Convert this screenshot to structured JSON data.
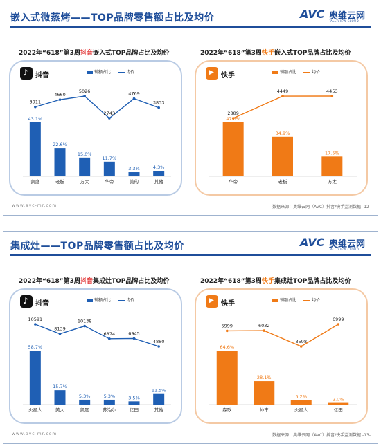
{
  "slides": [
    {
      "title": "嵌入式微蒸烤——TOP品牌零售额占比及均价",
      "logo": {
        "main": "AVC",
        "cn": "奥维云网",
        "sub": "ALL VIEW CLOUD"
      },
      "footer_left": "www.avc-mr.com",
      "footer_right": "数据来源：奥维云网（AVC）抖音/快手监测数据",
      "page": "-12-",
      "left_subtitle": {
        "pre": "2022年“618”第3周",
        "hl": "抖音",
        "post": "嵌入式TOP品牌占比及均价"
      },
      "right_subtitle": {
        "pre": "2022年“618”第3周",
        "hl": "快手",
        "post": "嵌入式TOP品牌占比及均价"
      }
    },
    {
      "title": "集成灶——TOP品牌零售额占比及均价",
      "logo": {
        "main": "AVC",
        "cn": "奥维云网",
        "sub": "ALL VIEW CLOUD"
      },
      "footer_left": "www.avc-mr.com",
      "footer_right": "数据来源：奥维云网（AVC）抖音/快手监测数据",
      "page": "-13-",
      "left_subtitle": {
        "pre": "2022年“618”第3周",
        "hl": "抖音",
        "post": "集成灶TOP品牌占比及均价"
      },
      "right_subtitle": {
        "pre": "2022年“618”第3周",
        "hl": "快手",
        "post": "集成灶TOP品牌占比及均价"
      }
    }
  ],
  "apps": {
    "douyin": "抖音",
    "kuaishou": "快手"
  },
  "legend": {
    "bar": "销额占比",
    "line": "均价"
  },
  "colors": {
    "douyin": "#1f5fb4",
    "kuaishou": "#f07a16"
  },
  "chart_data": [
    {
      "type": "bar+line",
      "categories": [
        "凯度",
        "老板",
        "方太",
        "华帝",
        "美的",
        "其他"
      ],
      "series": [
        {
          "name": "销额占比",
          "type": "bar",
          "values": [
            43.1,
            22.6,
            15.0,
            11.7,
            3.3,
            4.3
          ],
          "labels": [
            "43.1%",
            "22.6%",
            "15.0%",
            "11.7%",
            "3.3%",
            "4.3%"
          ]
        },
        {
          "name": "均价",
          "type": "line",
          "values": [
            3911,
            4660,
            5026,
            2743,
            4769,
            3833
          ]
        }
      ]
    },
    {
      "type": "bar+line",
      "categories": [
        "华帝",
        "老板",
        "方太"
      ],
      "series": [
        {
          "name": "销额占比",
          "type": "bar",
          "values": [
            47.6,
            34.9,
            17.5
          ],
          "labels": [
            "47.6%",
            "34.9%",
            "17.5%"
          ]
        },
        {
          "name": "均价",
          "type": "line",
          "values": [
            2889,
            4449,
            4453
          ]
        }
      ]
    },
    {
      "type": "bar+line",
      "categories": [
        "火星人",
        "美大",
        "凯度",
        "苏泊尔",
        "亿田",
        "其他"
      ],
      "series": [
        {
          "name": "销额占比",
          "type": "bar",
          "values": [
            58.7,
            15.7,
            5.3,
            5.3,
            3.5,
            11.5
          ],
          "labels": [
            "58.7%",
            "15.7%",
            "5.3%",
            "5.3%",
            "3.5%",
            "11.5%"
          ]
        },
        {
          "name": "均价",
          "type": "line",
          "values": [
            10591,
            8139,
            10138,
            6874,
            6945,
            4880
          ]
        }
      ]
    },
    {
      "type": "bar+line",
      "categories": [
        "森歌",
        "帅丰",
        "火星人",
        "亿田"
      ],
      "series": [
        {
          "name": "销额占比",
          "type": "bar",
          "values": [
            64.6,
            28.1,
            5.2,
            2.0
          ],
          "labels": [
            "64.6%",
            "28.1%",
            "5.2%",
            "2.0%"
          ]
        },
        {
          "name": "均价",
          "type": "line",
          "values": [
            5999,
            6032,
            3598,
            6999
          ]
        }
      ]
    }
  ]
}
